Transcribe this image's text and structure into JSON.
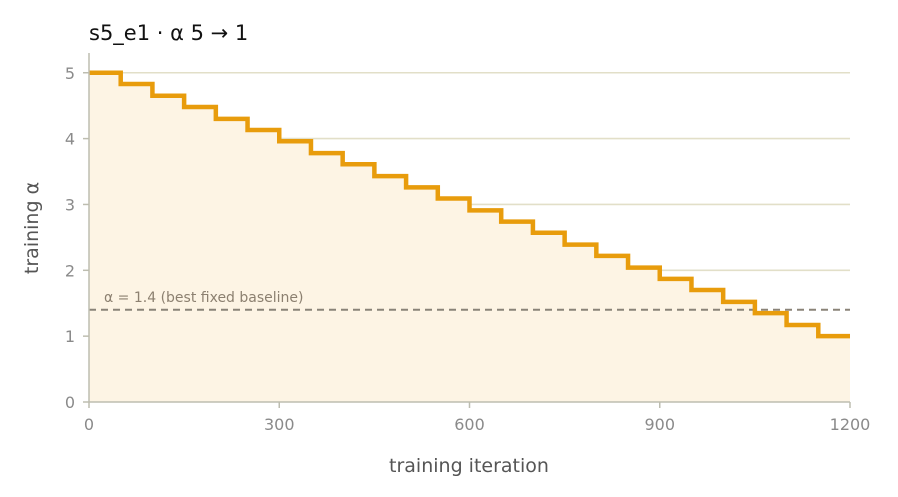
{
  "chart_data": {
    "type": "line",
    "title": "s5_e1   ·   α 5 → 1",
    "xlabel": "training iteration",
    "ylabel": "training α",
    "xlim": [
      0,
      1200
    ],
    "ylim": [
      0,
      5.3
    ],
    "xticks": [
      0,
      300,
      600,
      900,
      1200
    ],
    "xtick_labels": [
      "0",
      "300",
      "600",
      "900",
      "1200"
    ],
    "yticks": [
      0,
      1,
      2,
      3,
      4,
      5
    ],
    "ytick_labels": [
      "0",
      "1",
      "2",
      "3",
      "4",
      "5"
    ],
    "grid": "horizontal",
    "step": "post",
    "fill_under": true,
    "series": [
      {
        "color": "#e89c0c",
        "x": [
          0,
          50,
          100,
          150,
          200,
          250,
          300,
          350,
          400,
          450,
          500,
          550,
          600,
          650,
          700,
          750,
          800,
          850,
          900,
          950,
          1000,
          1050,
          1100,
          1150,
          1200
        ],
        "y": [
          5.0,
          4.83,
          4.65,
          4.48,
          4.3,
          4.13,
          3.96,
          3.78,
          3.61,
          3.43,
          3.26,
          3.09,
          2.91,
          2.74,
          2.57,
          2.39,
          2.22,
          2.04,
          1.87,
          1.7,
          1.52,
          1.35,
          1.17,
          1.0,
          1.0
        ]
      }
    ],
    "reference_line": {
      "y": 1.4,
      "label": "α = 1.4 (best fixed baseline)",
      "color": "#8a8378"
    },
    "colors": {
      "line": "#e89c0c",
      "fill": "#fdf4e4",
      "grid": "#e2dfc8",
      "axis": "#bdbdb0"
    }
  }
}
